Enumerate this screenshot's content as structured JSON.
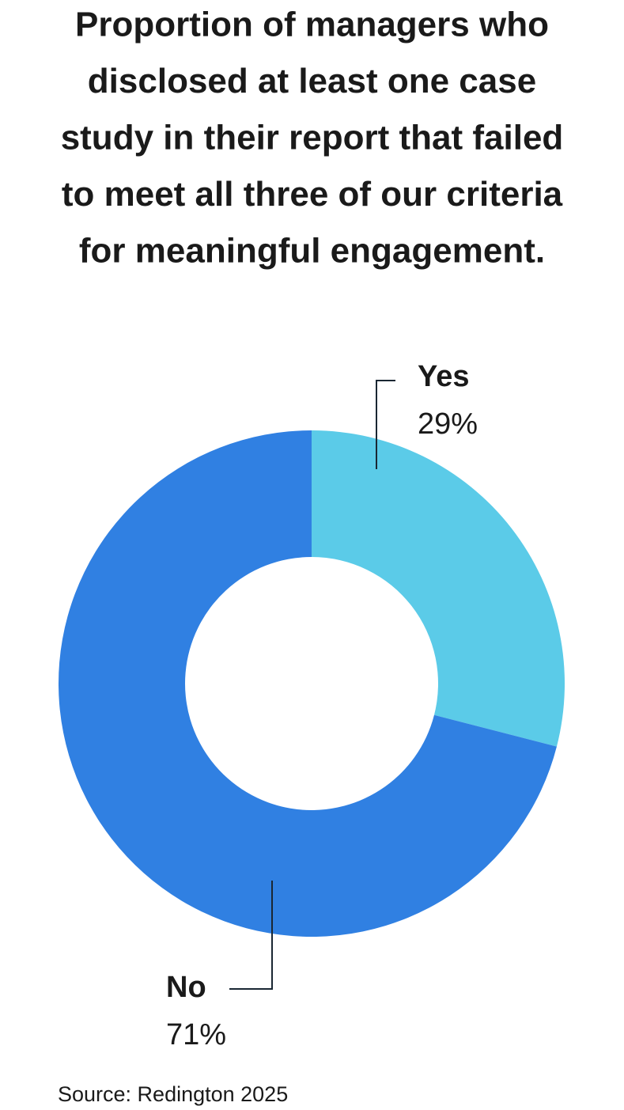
{
  "chart_data": {
    "type": "donut",
    "title": [
      "Proportion of managers who",
      "disclosed at least one case",
      "study in their report that failed",
      "to meet all three of our criteria",
      "for meaningful engagement."
    ],
    "categories": [
      "Yes",
      "No"
    ],
    "values": [
      29,
      71
    ],
    "value_labels": [
      "29%",
      "71%"
    ],
    "colors": [
      "#5bcbe8",
      "#3080e2"
    ],
    "source": "Source: Redington 2025"
  }
}
